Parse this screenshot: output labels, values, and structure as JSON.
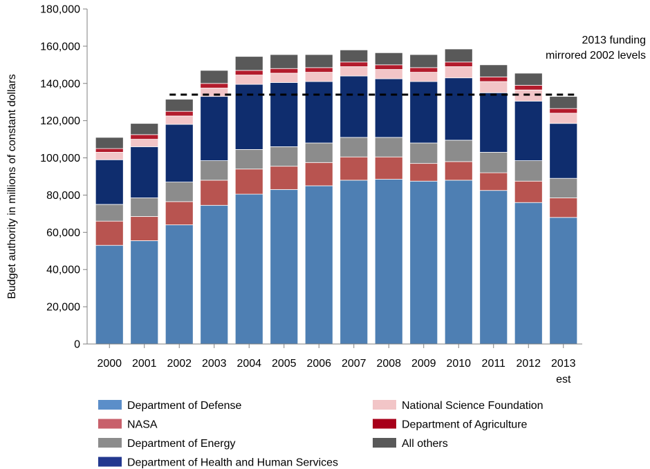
{
  "chart_data": {
    "type": "bar",
    "stacked": true,
    "ylabel": "Budget authority in millions of constant dollars",
    "xlabel": "",
    "ylim": [
      0,
      180000
    ],
    "yticks": [
      0,
      20000,
      40000,
      60000,
      80000,
      100000,
      120000,
      140000,
      160000,
      180000
    ],
    "ytick_labels": [
      "0",
      "20,000",
      "40,000",
      "60,000",
      "80,000",
      "100,000",
      "120,000",
      "140,000",
      "160,000",
      "180,000"
    ],
    "categories": [
      "2000",
      "2001",
      "2002",
      "2003",
      "2004",
      "2005",
      "2006",
      "2007",
      "2008",
      "2009",
      "2010",
      "2011",
      "2012",
      "2013"
    ],
    "category_sublabels": [
      "",
      "",
      "",
      "",
      "",
      "",
      "",
      "",
      "",
      "",
      "",
      "",
      "",
      "est"
    ],
    "series": [
      {
        "name": "Department of Defense",
        "color": "#4e7fb3",
        "values": [
          53000,
          55500,
          64000,
          74500,
          80500,
          83000,
          85000,
          88000,
          88500,
          87500,
          88000,
          82500,
          76000,
          68000
        ]
      },
      {
        "name": "NASA",
        "color": "#b85450",
        "values": [
          13000,
          13000,
          12500,
          13500,
          13500,
          12500,
          12500,
          12500,
          12000,
          9500,
          10000,
          9500,
          11500,
          10500
        ]
      },
      {
        "name": "Department of Energy",
        "color": "#8c8c8c",
        "values": [
          9000,
          10000,
          10500,
          10500,
          10500,
          10500,
          10500,
          10500,
          10500,
          11000,
          11500,
          11000,
          11000,
          10500
        ]
      },
      {
        "name": "Department of Health and Human Services",
        "color": "#0f2d6e",
        "values": [
          24000,
          27500,
          31000,
          34500,
          35000,
          34500,
          33000,
          33000,
          31500,
          33000,
          33500,
          32000,
          32000,
          29500
        ]
      },
      {
        "name": "National Science Foundation",
        "color": "#f2c5c7",
        "values": [
          4000,
          4000,
          4500,
          4500,
          5000,
          5000,
          5000,
          5000,
          5000,
          5000,
          6000,
          6000,
          6000,
          5500
        ]
      },
      {
        "name": "Department of Agriculture",
        "color": "#b31b2c",
        "values": [
          2000,
          2500,
          2500,
          2500,
          2500,
          2500,
          2500,
          2500,
          2500,
          2500,
          2500,
          2500,
          2500,
          2500
        ]
      },
      {
        "name": "All others",
        "color": "#595959",
        "values": [
          6000,
          6000,
          6500,
          7000,
          7500,
          7500,
          7000,
          6500,
          6500,
          7000,
          7000,
          6500,
          6500,
          6500
        ]
      }
    ],
    "reference_line": {
      "value": 134000,
      "from_category": "2002",
      "to_category": "2013",
      "style": "dashed",
      "color": "#000000"
    },
    "annotation": {
      "lines": [
        "2013 funding",
        "mirrored 2002 levels"
      ]
    },
    "legend": {
      "placement": "bottom",
      "columns": [
        [
          "Department of Defense",
          "NASA",
          "Department of Energy",
          "Department of Health and Human Services"
        ],
        [
          "National Science Foundation",
          "Department of Agriculture",
          "All others"
        ]
      ],
      "swatch_colors": {
        "Department of Defense": "#5b8ec9",
        "NASA": "#c8606b",
        "Department of Energy": "#8c8c8c",
        "Department of Health and Human Services": "#23388f",
        "National Science Foundation": "#f2c5c7",
        "Department of Agriculture": "#a8001a",
        "All others": "#595959"
      }
    },
    "grid": false
  }
}
